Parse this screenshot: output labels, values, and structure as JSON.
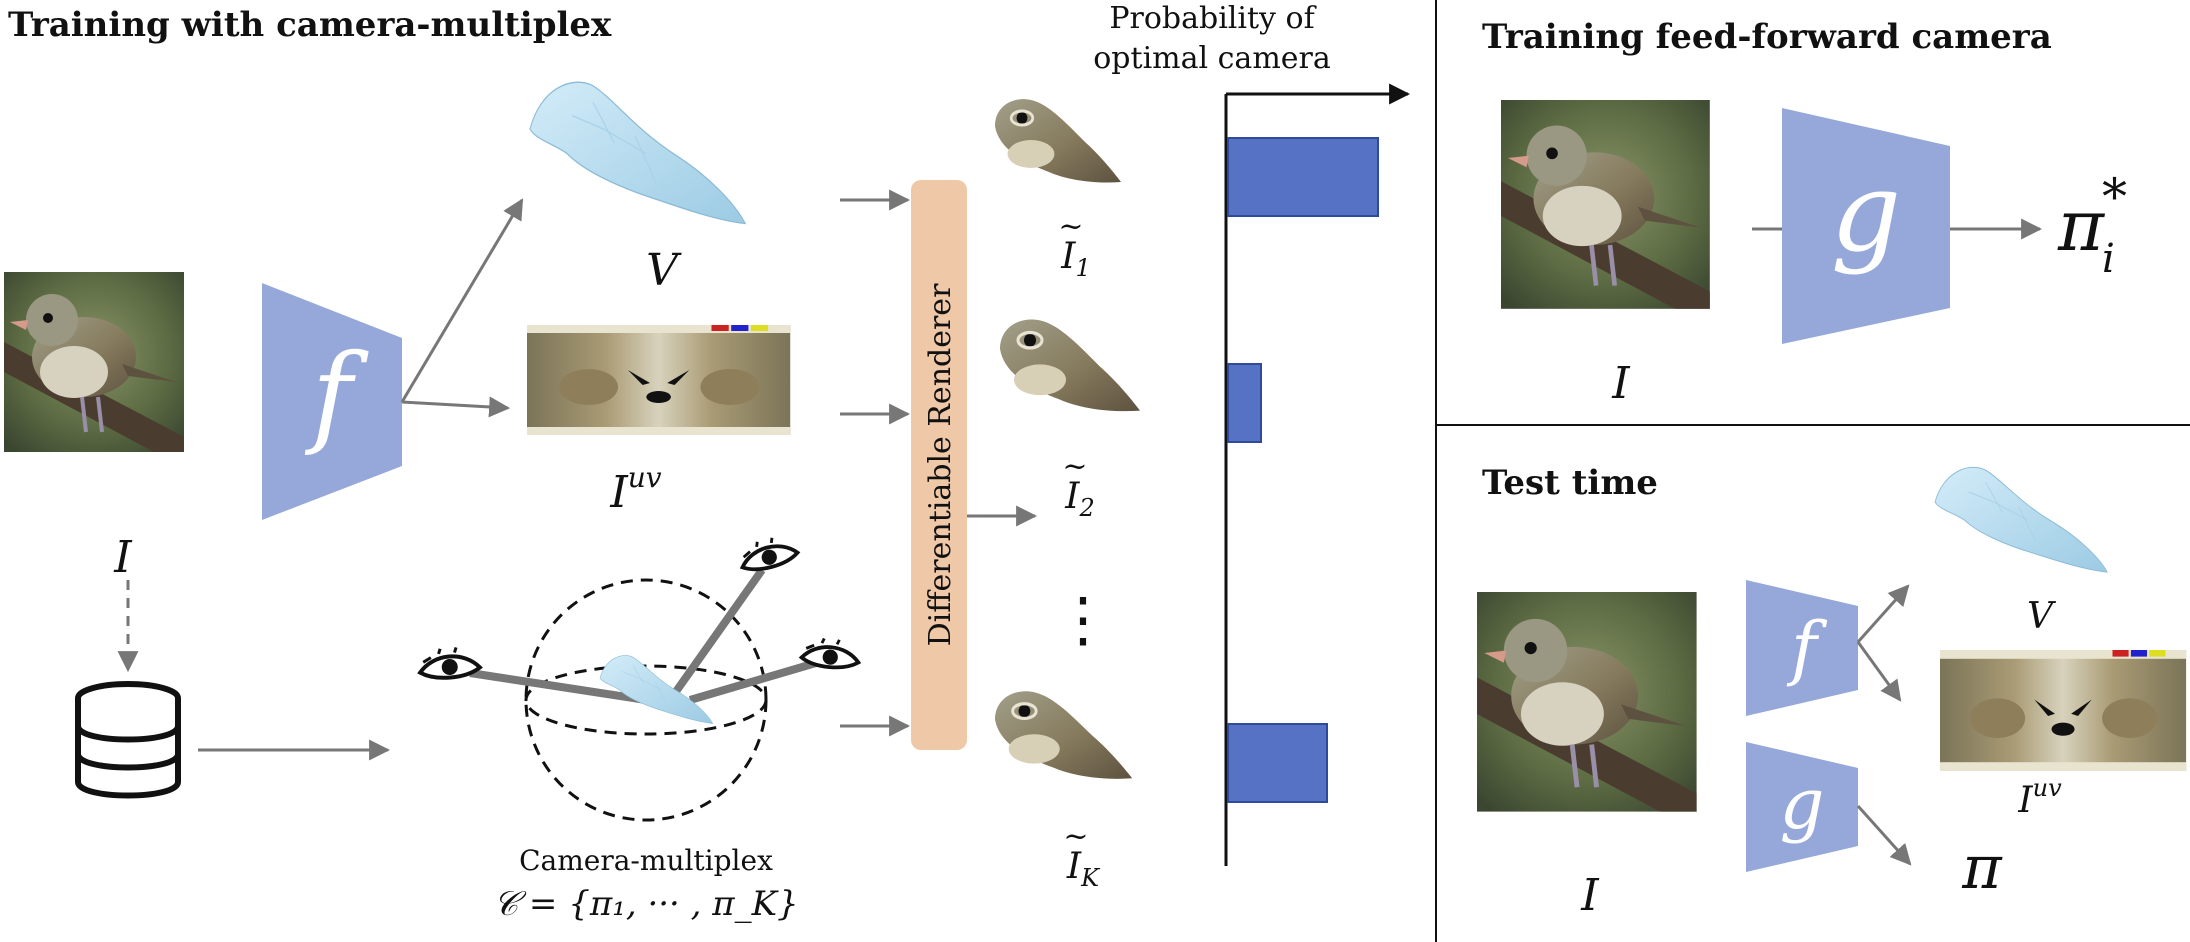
{
  "left_panel": {
    "title": "Training with camera-multiplex",
    "input_label": "I",
    "encoder_label": "f",
    "shape_label": "V",
    "texture_label": "I",
    "texture_sup": "uv",
    "renderer_label": "Differentiable Renderer",
    "render_labels": [
      {
        "base": "I",
        "sub": "1"
      },
      {
        "base": "I",
        "sub": "2"
      },
      {
        "base": "I",
        "sub": "K"
      }
    ],
    "ellipsis": "⋮",
    "multiplex_caption": "Camera-multiplex",
    "multiplex_formula": "𝒞 = {π₁, ··· , π_K}",
    "prob_axis_line1": "Probability of",
    "prob_axis_line2": "optimal camera",
    "prob_bars": [
      {
        "label": "I1",
        "value": 1.0
      },
      {
        "label": "I2",
        "value": 0.22
      },
      {
        "label": "IK",
        "value": 0.66
      }
    ]
  },
  "top_right_panel": {
    "title": "Training feed-forward camera",
    "input_label": "I",
    "network_label": "g",
    "output_label": "π",
    "output_sub": "i",
    "output_sup": "*"
  },
  "bottom_right_panel": {
    "title": "Test time",
    "input_label": "I",
    "net_f_label": "f",
    "net_g_label": "g",
    "shape_label": "V",
    "texture_label": "I",
    "texture_sup": "uv",
    "camera_label": "π"
  },
  "colors": {
    "network": "#95a8d9",
    "renderer": "#efc8a8",
    "bar": "#5572c4",
    "bar_stroke": "#2f4a9a",
    "arrow": "#777777",
    "mesh": "#b6dcf0",
    "photo_bg": "#5c6b43"
  }
}
